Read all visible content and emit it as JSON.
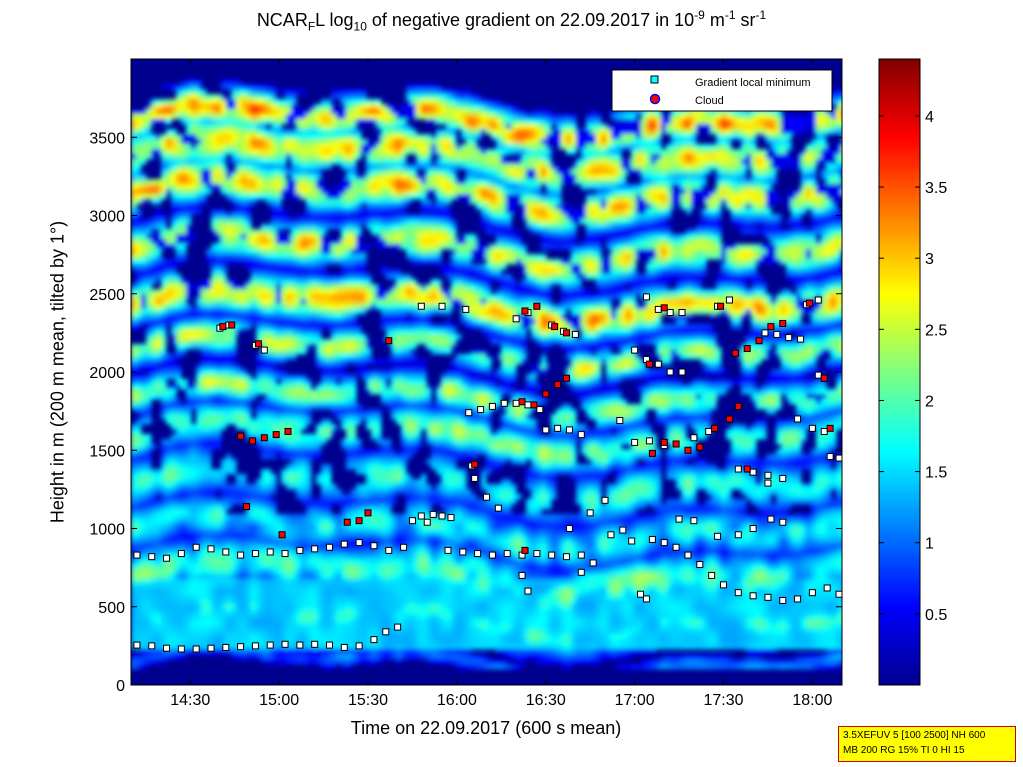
{
  "title": {
    "prefix": "NCAR",
    "sub1": "F",
    "mid": "L log",
    "sub2": "10",
    "rest": " of negative gradient on 22.09.2017 in 10",
    "sup1": "-9",
    "m": " m",
    "sup2": "-1",
    "sr": " sr",
    "sup3": "-1"
  },
  "ylabel": "Height in m (200 m mean, tilted by 1°)",
  "xlabel": "Time on 22.09.2017 (600 s mean)",
  "legend": [
    {
      "label": "Gradient local minimum",
      "marker": "square",
      "color": "#00ffff"
    },
    {
      "label": "Cloud",
      "marker": "circle",
      "color": "#ff0000"
    }
  ],
  "info_box": [
    "3.5XEFUV 5 [100 2500] NH 600",
    "MB 200 RG 15% TI 0 HI 15"
  ],
  "colors": {
    "background_plot": "#00008f",
    "cloud_marker": "#ff0000",
    "min_marker_edge": "#000000"
  },
  "chart_data": {
    "type": "heatmap",
    "x_unit": "time",
    "x_range": [
      "14:10",
      "18:10"
    ],
    "x_ticks": [
      "14:30",
      "15:00",
      "15:30",
      "16:00",
      "16:30",
      "17:00",
      "17:30",
      "18:00"
    ],
    "y_range": [
      0,
      4000
    ],
    "y_ticks": [
      0,
      500,
      1000,
      1500,
      2000,
      2500,
      3000,
      3500
    ],
    "colorbar": {
      "range": [
        0,
        4.4
      ],
      "ticks": [
        0.5,
        1,
        1.5,
        2,
        2.5,
        3,
        3.5,
        4
      ],
      "colormap": "jet"
    },
    "series": [
      {
        "name": "Gradient local minimum",
        "points": [
          {
            "t": "14:12",
            "h": 255
          },
          {
            "t": "14:17",
            "h": 250
          },
          {
            "t": "14:22",
            "h": 235
          },
          {
            "t": "14:27",
            "h": 230
          },
          {
            "t": "14:32",
            "h": 230
          },
          {
            "t": "14:37",
            "h": 235
          },
          {
            "t": "14:42",
            "h": 240
          },
          {
            "t": "14:47",
            "h": 245
          },
          {
            "t": "14:52",
            "h": 250
          },
          {
            "t": "14:57",
            "h": 255
          },
          {
            "t": "15:02",
            "h": 260
          },
          {
            "t": "15:07",
            "h": 255
          },
          {
            "t": "15:12",
            "h": 260
          },
          {
            "t": "15:17",
            "h": 255
          },
          {
            "t": "15:22",
            "h": 240
          },
          {
            "t": "15:27",
            "h": 250
          },
          {
            "t": "15:32",
            "h": 290
          },
          {
            "t": "15:36",
            "h": 340
          },
          {
            "t": "15:40",
            "h": 370
          },
          {
            "t": "14:12",
            "h": 830
          },
          {
            "t": "14:17",
            "h": 820
          },
          {
            "t": "14:22",
            "h": 810
          },
          {
            "t": "14:27",
            "h": 840
          },
          {
            "t": "14:32",
            "h": 880
          },
          {
            "t": "14:37",
            "h": 870
          },
          {
            "t": "14:42",
            "h": 850
          },
          {
            "t": "14:47",
            "h": 830
          },
          {
            "t": "14:52",
            "h": 840
          },
          {
            "t": "14:57",
            "h": 850
          },
          {
            "t": "15:02",
            "h": 840
          },
          {
            "t": "15:07",
            "h": 860
          },
          {
            "t": "15:12",
            "h": 870
          },
          {
            "t": "15:17",
            "h": 880
          },
          {
            "t": "15:22",
            "h": 900
          },
          {
            "t": "15:27",
            "h": 910
          },
          {
            "t": "15:32",
            "h": 890
          },
          {
            "t": "15:37",
            "h": 860
          },
          {
            "t": "15:42",
            "h": 880
          },
          {
            "t": "15:50",
            "h": 1040
          },
          {
            "t": "15:55",
            "h": 1080
          },
          {
            "t": "15:58",
            "h": 1070
          },
          {
            "t": "15:57",
            "h": 860
          },
          {
            "t": "16:02",
            "h": 850
          },
          {
            "t": "16:07",
            "h": 840
          },
          {
            "t": "16:12",
            "h": 830
          },
          {
            "t": "16:17",
            "h": 840
          },
          {
            "t": "16:22",
            "h": 830
          },
          {
            "t": "16:27",
            "h": 840
          },
          {
            "t": "16:32",
            "h": 830
          },
          {
            "t": "16:37",
            "h": 820
          },
          {
            "t": "16:42",
            "h": 830
          },
          {
            "t": "16:22",
            "h": 700
          },
          {
            "t": "16:24",
            "h": 600
          },
          {
            "t": "16:42",
            "h": 720
          },
          {
            "t": "16:46",
            "h": 780
          },
          {
            "t": "16:52",
            "h": 960
          },
          {
            "t": "16:56",
            "h": 990
          },
          {
            "t": "16:59",
            "h": 920
          },
          {
            "t": "17:02",
            "h": 580
          },
          {
            "t": "17:04",
            "h": 550
          },
          {
            "t": "17:06",
            "h": 930
          },
          {
            "t": "17:10",
            "h": 910
          },
          {
            "t": "17:14",
            "h": 880
          },
          {
            "t": "17:18",
            "h": 830
          },
          {
            "t": "17:22",
            "h": 770
          },
          {
            "t": "17:26",
            "h": 700
          },
          {
            "t": "17:30",
            "h": 640
          },
          {
            "t": "17:35",
            "h": 590
          },
          {
            "t": "17:40",
            "h": 570
          },
          {
            "t": "17:45",
            "h": 560
          },
          {
            "t": "17:50",
            "h": 540
          },
          {
            "t": "17:55",
            "h": 550
          },
          {
            "t": "18:00",
            "h": 590
          },
          {
            "t": "18:05",
            "h": 620
          },
          {
            "t": "18:09",
            "h": 580
          },
          {
            "t": "17:15",
            "h": 1060
          },
          {
            "t": "17:20",
            "h": 1050
          },
          {
            "t": "17:28",
            "h": 950
          },
          {
            "t": "17:35",
            "h": 960
          },
          {
            "t": "17:40",
            "h": 1000
          },
          {
            "t": "17:46",
            "h": 1060
          },
          {
            "t": "17:50",
            "h": 1040
          },
          {
            "t": "14:40",
            "h": 2280
          },
          {
            "t": "14:43",
            "h": 2300
          },
          {
            "t": "14:52",
            "h": 2170
          },
          {
            "t": "14:55",
            "h": 2140
          },
          {
            "t": "16:04",
            "h": 1740
          },
          {
            "t": "16:08",
            "h": 1760
          },
          {
            "t": "16:12",
            "h": 1780
          },
          {
            "t": "16:16",
            "h": 1800
          },
          {
            "t": "16:20",
            "h": 1800
          },
          {
            "t": "16:24",
            "h": 1790
          },
          {
            "t": "16:28",
            "h": 1760
          },
          {
            "t": "16:30",
            "h": 1630
          },
          {
            "t": "16:34",
            "h": 1640
          },
          {
            "t": "16:38",
            "h": 1630
          },
          {
            "t": "16:42",
            "h": 1600
          },
          {
            "t": "16:20",
            "h": 2340
          },
          {
            "t": "16:24",
            "h": 2380
          },
          {
            "t": "16:32",
            "h": 2300
          },
          {
            "t": "16:36",
            "h": 2260
          },
          {
            "t": "16:40",
            "h": 2240
          },
          {
            "t": "17:00",
            "h": 2140
          },
          {
            "t": "17:04",
            "h": 2080
          },
          {
            "t": "17:08",
            "h": 2050
          },
          {
            "t": "17:12",
            "h": 2000
          },
          {
            "t": "17:16",
            "h": 2000
          },
          {
            "t": "17:04",
            "h": 2480
          },
          {
            "t": "17:08",
            "h": 2400
          },
          {
            "t": "17:12",
            "h": 2380
          },
          {
            "t": "17:16",
            "h": 2380
          },
          {
            "t": "17:28",
            "h": 2420
          },
          {
            "t": "17:32",
            "h": 2460
          },
          {
            "t": "17:44",
            "h": 2250
          },
          {
            "t": "17:48",
            "h": 2240
          },
          {
            "t": "17:52",
            "h": 2220
          },
          {
            "t": "17:56",
            "h": 2210
          },
          {
            "t": "17:58",
            "h": 2430
          },
          {
            "t": "18:02",
            "h": 2460
          },
          {
            "t": "17:00",
            "h": 1550
          },
          {
            "t": "17:05",
            "h": 1560
          },
          {
            "t": "17:10",
            "h": 1530
          },
          {
            "t": "17:20",
            "h": 1580
          },
          {
            "t": "17:25",
            "h": 1620
          },
          {
            "t": "17:35",
            "h": 1380
          },
          {
            "t": "17:40",
            "h": 1360
          },
          {
            "t": "17:45",
            "h": 1340
          },
          {
            "t": "17:50",
            "h": 1320
          },
          {
            "t": "17:55",
            "h": 1700
          },
          {
            "t": "18:00",
            "h": 1640
          },
          {
            "t": "18:04",
            "h": 1620
          },
          {
            "t": "18:06",
            "h": 1460
          },
          {
            "t": "18:09",
            "h": 1450
          },
          {
            "t": "16:05",
            "h": 1400
          },
          {
            "t": "16:06",
            "h": 1320
          },
          {
            "t": "16:10",
            "h": 1200
          },
          {
            "t": "16:14",
            "h": 1130
          },
          {
            "t": "16:38",
            "h": 1000
          },
          {
            "t": "16:45",
            "h": 1100
          },
          {
            "t": "16:50",
            "h": 1180
          },
          {
            "t": "15:45",
            "h": 1050
          },
          {
            "t": "15:48",
            "h": 1080
          },
          {
            "t": "15:52",
            "h": 1090
          },
          {
            "t": "15:48",
            "h": 2420
          },
          {
            "t": "15:55",
            "h": 2420
          },
          {
            "t": "16:03",
            "h": 2400
          },
          {
            "t": "16:55",
            "h": 1690
          },
          {
            "t": "17:45",
            "h": 1290
          },
          {
            "t": "18:02",
            "h": 1980
          }
        ]
      },
      {
        "name": "Cloud",
        "points": [
          {
            "t": "14:41",
            "h": 2290
          },
          {
            "t": "14:44",
            "h": 2300
          },
          {
            "t": "14:53",
            "h": 2180
          },
          {
            "t": "14:47",
            "h": 1590
          },
          {
            "t": "14:51",
            "h": 1560
          },
          {
            "t": "14:55",
            "h": 1580
          },
          {
            "t": "14:59",
            "h": 1600
          },
          {
            "t": "15:03",
            "h": 1620
          },
          {
            "t": "14:49",
            "h": 1140
          },
          {
            "t": "15:01",
            "h": 960
          },
          {
            "t": "15:23",
            "h": 1040
          },
          {
            "t": "15:27",
            "h": 1050
          },
          {
            "t": "15:30",
            "h": 1100
          },
          {
            "t": "15:37",
            "h": 2200
          },
          {
            "t": "16:06",
            "h": 1410
          },
          {
            "t": "16:23",
            "h": 2390
          },
          {
            "t": "16:27",
            "h": 2420
          },
          {
            "t": "16:33",
            "h": 2290
          },
          {
            "t": "16:37",
            "h": 2250
          },
          {
            "t": "16:30",
            "h": 1860
          },
          {
            "t": "16:34",
            "h": 1920
          },
          {
            "t": "16:37",
            "h": 1960
          },
          {
            "t": "16:22",
            "h": 1810
          },
          {
            "t": "16:26",
            "h": 1790
          },
          {
            "t": "16:23",
            "h": 860
          },
          {
            "t": "17:05",
            "h": 2050
          },
          {
            "t": "17:10",
            "h": 2410
          },
          {
            "t": "17:06",
            "h": 1480
          },
          {
            "t": "17:10",
            "h": 1550
          },
          {
            "t": "17:14",
            "h": 1540
          },
          {
            "t": "17:18",
            "h": 1500
          },
          {
            "t": "17:22",
            "h": 1520
          },
          {
            "t": "17:27",
            "h": 1640
          },
          {
            "t": "17:32",
            "h": 1700
          },
          {
            "t": "17:35",
            "h": 1780
          },
          {
            "t": "17:29",
            "h": 2420
          },
          {
            "t": "17:34",
            "h": 2120
          },
          {
            "t": "17:38",
            "h": 2150
          },
          {
            "t": "17:42",
            "h": 2200
          },
          {
            "t": "17:46",
            "h": 2290
          },
          {
            "t": "17:50",
            "h": 2310
          },
          {
            "t": "17:38",
            "h": 1380
          },
          {
            "t": "17:59",
            "h": 2440
          },
          {
            "t": "18:04",
            "h": 1960
          },
          {
            "t": "18:06",
            "h": 1640
          }
        ]
      }
    ]
  }
}
